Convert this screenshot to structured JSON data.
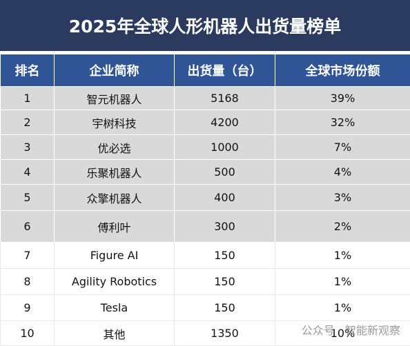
{
  "title": "2025年全球人形机器人出货量榜单",
  "table": {
    "header": [
      "排名",
      "企业简称",
      "出货量（台）",
      "全球市场份额"
    ],
    "rows": [
      [
        "1",
        "智元机器人",
        "5168",
        "39%"
      ],
      [
        "2",
        "宇树科技",
        "4200",
        "32%"
      ],
      [
        "3",
        "优必选",
        "1000",
        "7%"
      ],
      [
        "4",
        "乐聚机器人",
        "500",
        "4%"
      ],
      [
        "5",
        "众擎机器人",
        "400",
        "3%"
      ],
      [
        "6",
        "傅利叶",
        "300",
        "2%"
      ],
      [
        "7",
        "Figure AI",
        "150",
        "1%"
      ],
      [
        "8",
        "Agility Robotics",
        "150",
        "1%"
      ],
      [
        "9",
        "Tesla",
        "150",
        "1%"
      ],
      [
        "10",
        "其他",
        "1350",
        "10%"
      ]
    ]
  },
  "watermark": "公众号 · 智能新观察"
}
